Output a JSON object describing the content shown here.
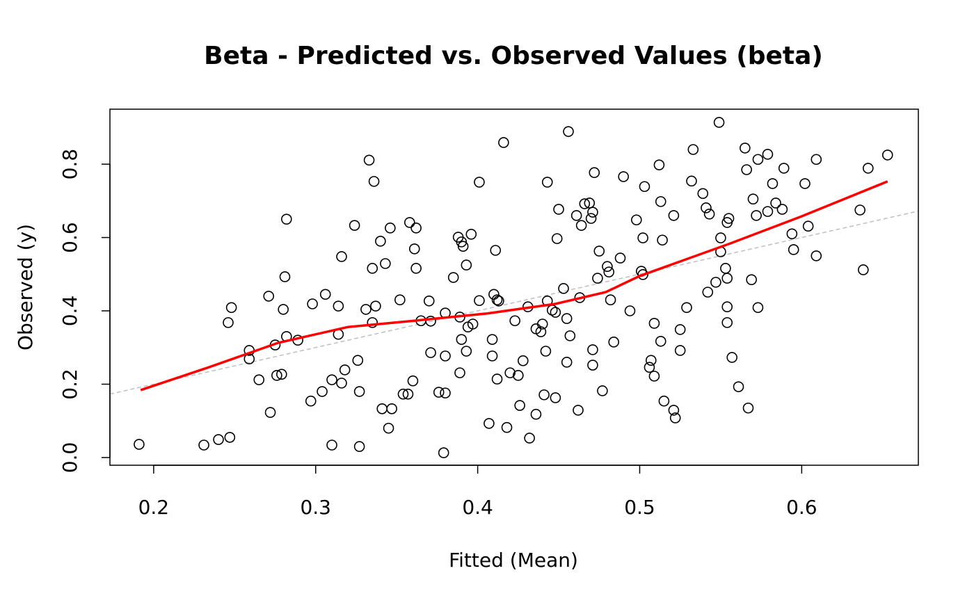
{
  "chart_data": {
    "type": "scatter",
    "title": "Beta - Predicted vs. Observed Values (beta)",
    "xlabel": "Fitted (Mean)",
    "ylabel": "Observed (y)",
    "xlim": [
      0.173,
      0.672
    ],
    "ylim": [
      -0.021,
      0.95
    ],
    "xticks": [
      0.2,
      0.3,
      0.4,
      0.5,
      0.6
    ],
    "yticks": [
      {
        "value": 0,
        "label": "0.0"
      },
      0.2,
      0.4,
      0.6,
      0.8
    ],
    "color": "#000000",
    "x": [
      0.191,
      0.231,
      0.24,
      0.247,
      0.246,
      0.248,
      0.259,
      0.259,
      0.265,
      0.271,
      0.275,
      0.272,
      0.276,
      0.279,
      0.28,
      0.281,
      0.282,
      0.282,
      0.289,
      0.297,
      0.298,
      0.304,
      0.306,
      0.31,
      0.31,
      0.314,
      0.314,
      0.316,
      0.316,
      0.318,
      0.324,
      0.326,
      0.327,
      0.327,
      0.331,
      0.333,
      0.335,
      0.335,
      0.336,
      0.337,
      0.34,
      0.341,
      0.343,
      0.345,
      0.346,
      0.347,
      0.352,
      0.354,
      0.357,
      0.358,
      0.36,
      0.361,
      0.362,
      0.362,
      0.365,
      0.371,
      0.37,
      0.371,
      0.376,
      0.379,
      0.38,
      0.38,
      0.38,
      0.385,
      0.388,
      0.389,
      0.389,
      0.39,
      0.39,
      0.391,
      0.393,
      0.394,
      0.393,
      0.396,
      0.397,
      0.401,
      0.401,
      0.407,
      0.409,
      0.409,
      0.41,
      0.411,
      0.412,
      0.412,
      0.413,
      0.416,
      0.418,
      0.42,
      0.423,
      0.425,
      0.426,
      0.428,
      0.431,
      0.432,
      0.436,
      0.436,
      0.439,
      0.44,
      0.441,
      0.442,
      0.443,
      0.443,
      0.446,
      0.448,
      0.448,
      0.449,
      0.45,
      0.453,
      0.455,
      0.455,
      0.457,
      0.456,
      0.461,
      0.462,
      0.463,
      0.464,
      0.466,
      0.469,
      0.47,
      0.471,
      0.471,
      0.471,
      0.472,
      0.474,
      0.475,
      0.477,
      0.48,
      0.481,
      0.482,
      0.484,
      0.488,
      0.49,
      0.494,
      0.498,
      0.501,
      0.502,
      0.502,
      0.503,
      0.506,
      0.507,
      0.509,
      0.509,
      0.512,
      0.513,
      0.513,
      0.514,
      0.515,
      0.521,
      0.521,
      0.522,
      0.525,
      0.525,
      0.529,
      0.532,
      0.533,
      0.539,
      0.541,
      0.542,
      0.543,
      0.547,
      0.549,
      0.55,
      0.55,
      0.553,
      0.554,
      0.554,
      0.554,
      0.555,
      0.554,
      0.557,
      0.561,
      0.565,
      0.566,
      0.567,
      0.569,
      0.57,
      0.572,
      0.573,
      0.573,
      0.579,
      0.579,
      0.582,
      0.584,
      0.588,
      0.589,
      0.594,
      0.595,
      0.602,
      0.604,
      0.609,
      0.609,
      0.636,
      0.638,
      0.641,
      0.653
    ],
    "y": [
      0.036,
      0.034,
      0.049,
      0.055,
      0.368,
      0.409,
      0.292,
      0.269,
      0.212,
      0.44,
      0.307,
      0.123,
      0.224,
      0.227,
      0.404,
      0.493,
      0.33,
      0.65,
      0.32,
      0.154,
      0.419,
      0.18,
      0.445,
      0.212,
      0.034,
      0.336,
      0.413,
      0.203,
      0.548,
      0.239,
      0.633,
      0.265,
      0.18,
      0.03,
      0.404,
      0.811,
      0.516,
      0.368,
      0.753,
      0.413,
      0.59,
      0.133,
      0.529,
      0.08,
      0.626,
      0.133,
      0.43,
      0.173,
      0.173,
      0.641,
      0.209,
      0.569,
      0.626,
      0.516,
      0.373,
      0.286,
      0.427,
      0.372,
      0.178,
      0.013,
      0.277,
      0.176,
      0.394,
      0.491,
      0.601,
      0.383,
      0.231,
      0.322,
      0.588,
      0.576,
      0.525,
      0.356,
      0.29,
      0.609,
      0.364,
      0.428,
      0.751,
      0.093,
      0.277,
      0.322,
      0.445,
      0.565,
      0.214,
      0.43,
      0.427,
      0.859,
      0.082,
      0.231,
      0.373,
      0.224,
      0.142,
      0.264,
      0.411,
      0.053,
      0.118,
      0.351,
      0.343,
      0.364,
      0.171,
      0.29,
      0.751,
      0.427,
      0.402,
      0.163,
      0.396,
      0.597,
      0.677,
      0.461,
      0.26,
      0.379,
      0.332,
      0.889,
      0.66,
      0.129,
      0.436,
      0.633,
      0.692,
      0.694,
      0.652,
      0.669,
      0.252,
      0.294,
      0.777,
      0.489,
      0.563,
      0.182,
      0.521,
      0.506,
      0.43,
      0.315,
      0.544,
      0.766,
      0.4,
      0.648,
      0.508,
      0.499,
      0.599,
      0.739,
      0.246,
      0.265,
      0.222,
      0.366,
      0.798,
      0.317,
      0.698,
      0.593,
      0.154,
      0.129,
      0.66,
      0.108,
      0.292,
      0.349,
      0.409,
      0.754,
      0.84,
      0.72,
      0.681,
      0.451,
      0.664,
      0.478,
      0.914,
      0.599,
      0.561,
      0.516,
      0.411,
      0.641,
      0.368,
      0.652,
      0.489,
      0.273,
      0.193,
      0.844,
      0.785,
      0.135,
      0.485,
      0.705,
      0.66,
      0.409,
      0.813,
      0.827,
      0.671,
      0.747,
      0.694,
      0.677,
      0.789,
      0.61,
      0.567,
      0.747,
      0.631,
      0.813,
      0.55,
      0.675,
      0.512,
      0.789,
      0.825
    ],
    "smooth": {
      "color": "#ff0000",
      "x": [
        0.192,
        0.234,
        0.277,
        0.32,
        0.363,
        0.406,
        0.448,
        0.479,
        0.5,
        0.517,
        0.556,
        0.599,
        0.653
      ],
      "y": [
        0.184,
        0.246,
        0.313,
        0.356,
        0.374,
        0.393,
        0.419,
        0.451,
        0.495,
        0.522,
        0.584,
        0.656,
        0.753
      ]
    },
    "reference_line": {
      "slope": 1,
      "intercept": 0,
      "color": "#bebebe"
    }
  }
}
